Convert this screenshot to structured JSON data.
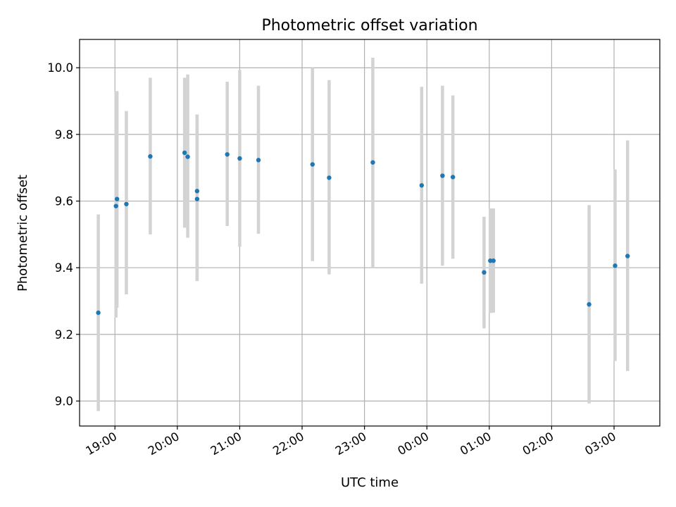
{
  "chart_data": {
    "type": "scatter",
    "title": "Photometric offset variation",
    "xlabel": "UTC time",
    "ylabel": "Photometric offset",
    "x_axis_type": "time",
    "xlim": [
      "18:26",
      "03:44"
    ],
    "ylim": [
      8.925,
      10.085
    ],
    "x_ticks": [
      "19:00",
      "20:00",
      "21:00",
      "22:00",
      "23:00",
      "00:00",
      "01:00",
      "02:00",
      "03:00"
    ],
    "y_ticks": [
      "9.0",
      "9.2",
      "9.4",
      "9.6",
      "9.8",
      "10.0"
    ],
    "y_tick_values": [
      9.0,
      9.2,
      9.4,
      9.6,
      9.8,
      10.0
    ],
    "grid": true,
    "marker_color": "#1f77b4",
    "errorbar_color": "#d3d3d3",
    "points": [
      {
        "x": "18:44",
        "y": 9.265,
        "ymin": 8.97,
        "ymax": 9.56
      },
      {
        "x": "19:01",
        "y": 9.585,
        "ymin": 9.25,
        "ymax": 9.93
      },
      {
        "x": "19:02",
        "y": 9.606,
        "ymin": 9.28,
        "ymax": 9.93
      },
      {
        "x": "19:11",
        "y": 9.591,
        "ymin": 9.32,
        "ymax": 9.87
      },
      {
        "x": "19:34",
        "y": 9.734,
        "ymin": 9.5,
        "ymax": 9.97
      },
      {
        "x": "20:07",
        "y": 9.745,
        "ymin": 9.52,
        "ymax": 9.97
      },
      {
        "x": "20:10",
        "y": 9.733,
        "ymin": 9.49,
        "ymax": 9.98
      },
      {
        "x": "20:19",
        "y": 9.606,
        "ymin": 9.36,
        "ymax": 9.86
      },
      {
        "x": "20:19",
        "y": 9.63,
        "ymin": 9.36,
        "ymax": 9.86
      },
      {
        "x": "20:48",
        "y": 9.74,
        "ymin": 9.525,
        "ymax": 9.958
      },
      {
        "x": "21:00",
        "y": 9.728,
        "ymin": 9.463,
        "ymax": 9.993
      },
      {
        "x": "21:18",
        "y": 9.723,
        "ymin": 9.502,
        "ymax": 9.946
      },
      {
        "x": "22:10",
        "y": 9.71,
        "ymin": 9.42,
        "ymax": 10.0
      },
      {
        "x": "22:26",
        "y": 9.67,
        "ymin": 9.38,
        "ymax": 9.963
      },
      {
        "x": "23:08",
        "y": 9.716,
        "ymin": 9.4,
        "ymax": 10.03
      },
      {
        "x": "23:55",
        "y": 9.647,
        "ymin": 9.352,
        "ymax": 9.943
      },
      {
        "x": "00:15",
        "y": 9.676,
        "ymin": 9.406,
        "ymax": 9.946
      },
      {
        "x": "00:25",
        "y": 9.672,
        "ymin": 9.427,
        "ymax": 9.917
      },
      {
        "x": "00:55",
        "y": 9.386,
        "ymin": 9.218,
        "ymax": 9.553
      },
      {
        "x": "01:01",
        "y": 9.421,
        "ymin": 9.264,
        "ymax": 9.578
      },
      {
        "x": "01:04",
        "y": 9.421,
        "ymin": 9.265,
        "ymax": 9.578
      },
      {
        "x": "02:36",
        "y": 9.29,
        "ymin": 8.993,
        "ymax": 9.588
      },
      {
        "x": "03:01",
        "y": 9.406,
        "ymin": 9.12,
        "ymax": 9.695
      },
      {
        "x": "03:13",
        "y": 9.435,
        "ymin": 9.09,
        "ymax": 9.782
      }
    ]
  }
}
